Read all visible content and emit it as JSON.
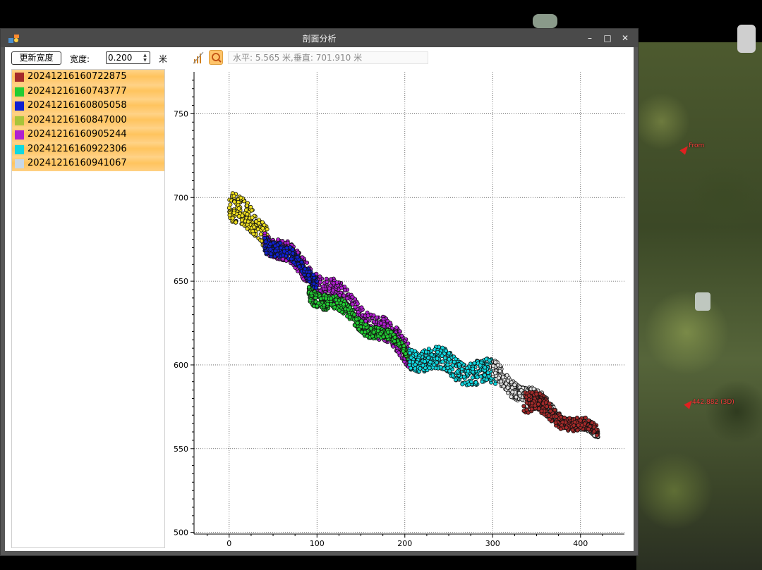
{
  "window": {
    "title": "剖面分析"
  },
  "toolbar": {
    "update_width_label": "更新宽度",
    "width_label": "宽度:",
    "width_value": "0.200",
    "width_unit": "米",
    "coords_readout": "水平: 5.565 米,垂直: 701.910 米"
  },
  "series": [
    {
      "name": "20241216160722875",
      "color": "#a52a2a"
    },
    {
      "name": "20241216160743777",
      "color": "#22cc33"
    },
    {
      "name": "20241216160805058",
      "color": "#1020d0"
    },
    {
      "name": "20241216160847000",
      "color": "#a8c43a"
    },
    {
      "name": "20241216160905244",
      "color": "#b020d0"
    },
    {
      "name": "20241216160922306",
      "color": "#10d8e0"
    },
    {
      "name": "20241216160941067",
      "color": "#c8d8e8"
    }
  ],
  "map_labels": {
    "from": "From",
    "distance": "442.882 (3D)"
  },
  "chart_data": {
    "type": "scatter",
    "xlim": [
      -40,
      450
    ],
    "ylim": [
      499,
      775
    ],
    "xticks": [
      0,
      100,
      200,
      300,
      400
    ],
    "yticks": [
      500,
      550,
      600,
      650,
      700,
      750
    ],
    "grid": true,
    "segments": [
      {
        "series": 3,
        "color": "#f0e020",
        "x0": 0,
        "x1": 45,
        "y_top": [
          703,
          685
        ],
        "y_bottom": [
          685,
          672
        ]
      },
      {
        "series": 4,
        "color": "#b020d0",
        "x0": 40,
        "x1": 205,
        "y_top": [
          682,
          615
        ],
        "y_bottom": [
          670,
          600
        ]
      },
      {
        "series": 1,
        "color": "#22cc33",
        "x0": 90,
        "x1": 205,
        "y_top": [
          650,
          610
        ],
        "y_bottom": [
          640,
          605
        ]
      },
      {
        "series": 2,
        "color": "#1020d0",
        "x0": 40,
        "x1": 100,
        "y_top": [
          680,
          655
        ],
        "y_bottom": [
          670,
          648
        ]
      },
      {
        "series": 5,
        "color": "#10d8e0",
        "x0": 205,
        "x1": 305,
        "y_top": [
          612,
          600
        ],
        "y_bottom": [
          600,
          585
        ]
      },
      {
        "series": 6,
        "color": "#e0e0e0",
        "x0": 300,
        "x1": 420,
        "y_top": [
          602,
          556
        ],
        "y_bottom": [
          590,
          554
        ]
      },
      {
        "series": 0,
        "color": "#a52a2a",
        "x0": 335,
        "x1": 420,
        "y_top": [
          585,
          562
        ],
        "y_bottom": [
          572,
          556
        ]
      }
    ]
  }
}
